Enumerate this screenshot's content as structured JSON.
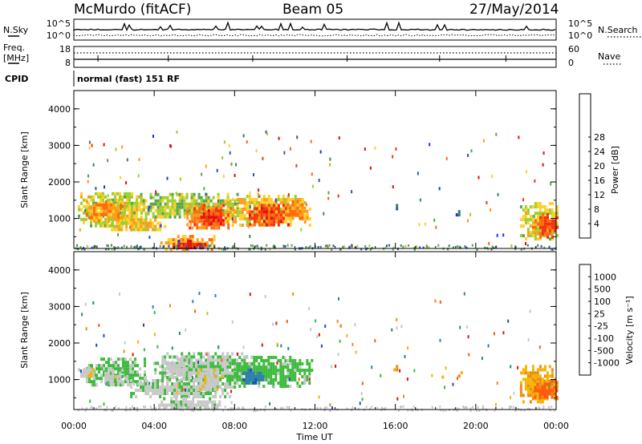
{
  "header": {
    "station": "McMurdo (fitACF)",
    "beam": "Beam 05",
    "date": "27/May/2014"
  },
  "panel_labels": {
    "nsky": "N.Sky",
    "nsearch": "N.Search",
    "freq_line1": "Freq.",
    "freq_line2": "[MHz]",
    "nave": "Nave",
    "cpid": "CPID",
    "cpid_value": "normal (fast) 151 RF"
  },
  "noise_axis": {
    "left": [
      "10^5",
      "10^0"
    ],
    "right": [
      "10^5",
      "10^0"
    ]
  },
  "freq_axis": {
    "left": [
      "18",
      "8"
    ],
    "right": [
      "60",
      "0"
    ]
  },
  "colors": {
    "noise_line": "#000000",
    "no_data": "#ffffff"
  },
  "chart_data": [
    {
      "type": "heatmap",
      "name": "power",
      "ylabel": "Slant Range [km]",
      "xlabel": "",
      "xlim": [
        0,
        24
      ],
      "ylim": [
        180,
        4500
      ],
      "yticks": [
        1000,
        2000,
        3000,
        4000
      ],
      "colorbar_label": "Power [dB]",
      "colorbar_ticks": [
        "4",
        "8",
        "12",
        "16",
        "20",
        "24",
        "28"
      ],
      "colorbar_colors": [
        "#1b32e6",
        "#2f55a8",
        "#3e7f63",
        "#59a44e",
        "#9fce2d",
        "#ffd02a",
        "#ff9a1b",
        "#ff6a10",
        "#f33410",
        "#e01010"
      ],
      "data_range": [
        0,
        32
      ],
      "regions": [
        {
          "t0": 0.2,
          "t1": 3.6,
          "r0": 780,
          "r1": 1720,
          "v": 16
        },
        {
          "t0": 0.6,
          "t1": 2.4,
          "r0": 950,
          "r1": 1500,
          "v": 21
        },
        {
          "t0": 1.6,
          "t1": 4.5,
          "r0": 700,
          "r1": 1000,
          "v": 18
        },
        {
          "t0": 3.3,
          "t1": 8.2,
          "r0": 1000,
          "r1": 1700,
          "v": 14
        },
        {
          "t0": 5.6,
          "t1": 8.0,
          "r0": 750,
          "r1": 1400,
          "v": 23
        },
        {
          "t0": 6.3,
          "t1": 7.5,
          "r0": 850,
          "r1": 1250,
          "v": 28
        },
        {
          "t0": 7.5,
          "t1": 11.8,
          "r0": 820,
          "r1": 1650,
          "v": 18
        },
        {
          "t0": 8.7,
          "t1": 10.7,
          "r0": 850,
          "r1": 1400,
          "v": 27
        },
        {
          "t0": 10.6,
          "t1": 11.6,
          "r0": 1000,
          "r1": 1500,
          "v": 22
        },
        {
          "t0": 4.3,
          "t1": 7.0,
          "r0": 180,
          "r1": 550,
          "v": 20
        },
        {
          "t0": 4.8,
          "t1": 6.5,
          "r0": 200,
          "r1": 420,
          "v": 29
        },
        {
          "t0": 22.2,
          "t1": 24.0,
          "r0": 420,
          "r1": 1450,
          "v": 16
        },
        {
          "t0": 22.8,
          "t1": 24.0,
          "r0": 480,
          "r1": 1150,
          "v": 25
        },
        {
          "t0": 15.9,
          "t1": 16.1,
          "r0": 1250,
          "r1": 1400,
          "v": 6
        },
        {
          "t0": 17.3,
          "t1": 17.4,
          "r0": 1050,
          "r1": 1150,
          "v": 6
        },
        {
          "t0": 19.0,
          "t1": 19.2,
          "r0": 1080,
          "r1": 1230,
          "v": 5
        }
      ]
    },
    {
      "type": "heatmap",
      "name": "velocity",
      "ylabel": "Slant Range [km]",
      "xlabel": "Time UT",
      "xlim": [
        0,
        24
      ],
      "ylim": [
        180,
        4500
      ],
      "yticks": [
        1000,
        2000,
        3000,
        4000
      ],
      "xticks": [
        "00:00",
        "04:00",
        "08:00",
        "12:00",
        "16:00",
        "20:00",
        "00:00"
      ],
      "colorbar_label": "Velocity [m s⁻¹]",
      "colorbar_ticks": [
        "1000",
        "500",
        "100",
        "25",
        "-25",
        "-100",
        "-500",
        "-1000"
      ],
      "colorbar_colors": [
        "#1f4fbf",
        "#2f7fb0",
        "#2e8b57",
        "#3dbb3d",
        "#c8c8c8",
        "#f5b400",
        "#f08a10",
        "#ff5a10",
        "#e01010"
      ],
      "data_range": [
        -1000,
        1000
      ],
      "regions": [
        {
          "t0": 0.6,
          "t1": 3.6,
          "r0": 850,
          "r1": 1600,
          "v": 150
        },
        {
          "t0": 0.2,
          "t1": 1.0,
          "r0": 1100,
          "r1": 1400,
          "v": -80
        },
        {
          "t0": 1.4,
          "t1": 2.6,
          "r0": 900,
          "r1": 1300,
          "v": 20
        },
        {
          "t0": 2.8,
          "t1": 8.0,
          "r0": 500,
          "r1": 1100,
          "v": 60
        },
        {
          "t0": 4.0,
          "t1": 8.8,
          "r0": 1000,
          "r1": 1750,
          "v": 90
        },
        {
          "t0": 4.5,
          "t1": 5.8,
          "r0": 1100,
          "r1": 1600,
          "v": 10
        },
        {
          "t0": 6.0,
          "t1": 7.4,
          "r0": 700,
          "r1": 1300,
          "v": -40
        },
        {
          "t0": 7.6,
          "t1": 11.8,
          "r0": 820,
          "r1": 1650,
          "v": 200
        },
        {
          "t0": 8.4,
          "t1": 9.4,
          "r0": 900,
          "r1": 1300,
          "v": 700
        },
        {
          "t0": 4.2,
          "t1": 7.2,
          "r0": 180,
          "r1": 520,
          "v": 30
        },
        {
          "t0": 22.2,
          "t1": 24.0,
          "r0": 420,
          "r1": 1400,
          "v": -300
        },
        {
          "t0": 22.9,
          "t1": 24.0,
          "r0": 500,
          "r1": 1000,
          "v": -600
        },
        {
          "t0": 15.9,
          "t1": 16.1,
          "r0": 1250,
          "r1": 1400,
          "v": -300
        },
        {
          "t0": 18.3,
          "t1": 18.4,
          "r0": 1050,
          "r1": 1200,
          "v": -300
        },
        {
          "t0": 19.0,
          "t1": 19.3,
          "r0": 1080,
          "r1": 1230,
          "v": -250
        }
      ]
    }
  ]
}
